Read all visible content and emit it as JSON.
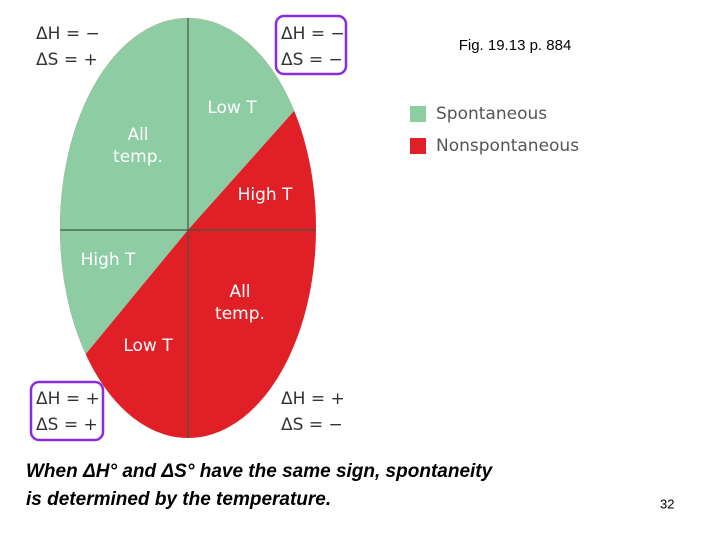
{
  "caption": "Fig. 19.13 p. 884",
  "legend": [
    {
      "label": "Spontaneous",
      "color": "#8ecda4"
    },
    {
      "label": "Nonspontaneous",
      "color": "#e01f26"
    }
  ],
  "regions": [
    {
      "lines": [
        "All",
        "temp."
      ]
    },
    {
      "lines": [
        "Low T"
      ]
    },
    {
      "lines": [
        "High T"
      ]
    },
    {
      "lines": [
        "High T"
      ]
    },
    {
      "lines": [
        "All",
        "temp."
      ]
    },
    {
      "lines": [
        "Low T"
      ]
    }
  ],
  "signs": [
    {
      "dH": "ΔH = −",
      "dS": "ΔS = +"
    },
    {
      "dH": "ΔH = −",
      "dS": "ΔS = −"
    },
    {
      "dH": "ΔH = +",
      "dS": "ΔS = +"
    },
    {
      "dH": "ΔH = +",
      "dS": "ΔS = −"
    }
  ],
  "footer": [
    "When ΔH° and ΔS° have the same sign, spontaneity",
    "is determined by the temperature."
  ],
  "page_number": "32"
}
